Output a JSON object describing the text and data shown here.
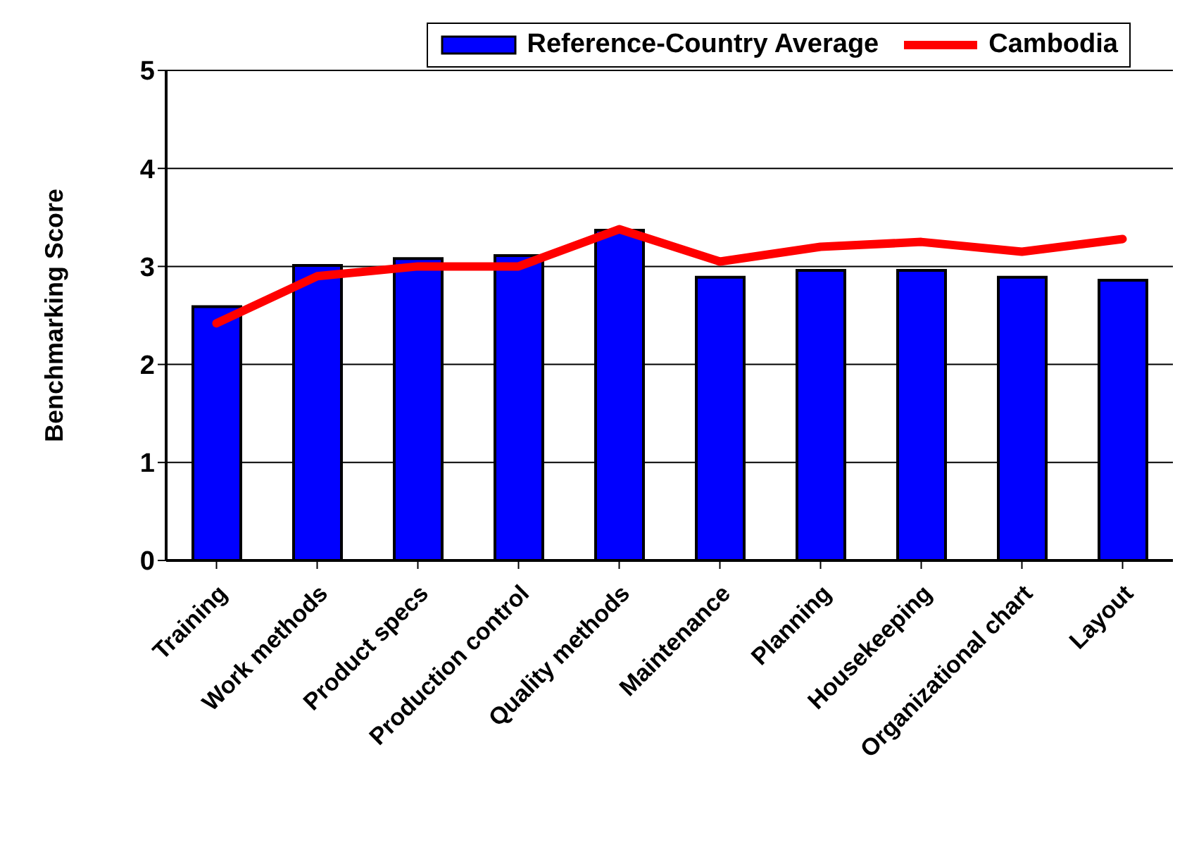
{
  "chart_data": {
    "type": "bar",
    "ylabel": "Benchmarking Score",
    "categories": [
      "Training",
      "Work methods",
      "Product specs",
      "Production control",
      "Quality methods",
      "Maintenance",
      "Planning",
      "Housekeeping",
      "Organizational chart",
      "Layout"
    ],
    "series": [
      {
        "name": "Reference-Country Average",
        "color": "#0000ff",
        "values": [
          2.59,
          3.01,
          3.08,
          3.11,
          3.37,
          2.89,
          2.96,
          2.96,
          2.89,
          2.86
        ]
      },
      {
        "name": "Cambodia",
        "type": "line",
        "color": "#ff0000",
        "values": [
          2.42,
          2.9,
          3.0,
          3.0,
          3.38,
          3.05,
          3.2,
          3.25,
          3.15,
          3.28
        ]
      }
    ],
    "ylim": [
      0,
      5
    ],
    "yticks": [
      0,
      1,
      2,
      3,
      4,
      5
    ],
    "grid": "y",
    "legend": "top right",
    "marker": "none",
    "line_style": "solid"
  }
}
